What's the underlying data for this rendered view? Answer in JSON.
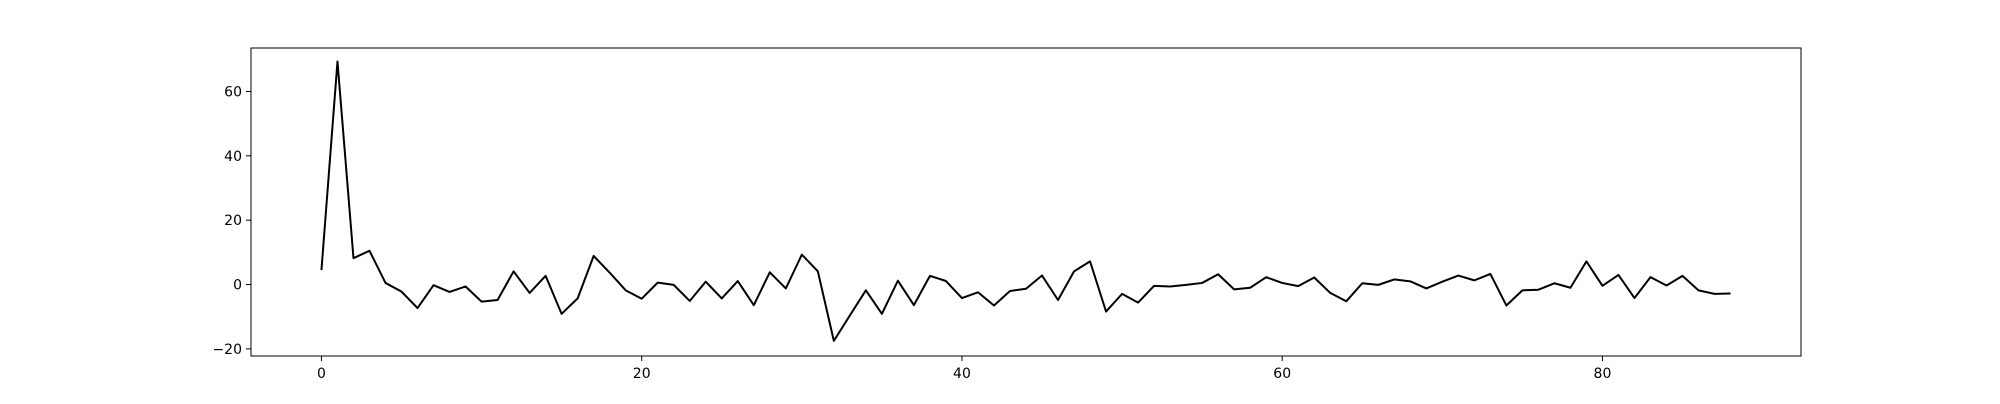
{
  "chart_data": {
    "type": "line",
    "title": "",
    "xlabel": "",
    "ylabel": "",
    "xlim": [
      -4.4,
      92.4
    ],
    "ylim": [
      -22.2,
      73.5
    ],
    "grid": false,
    "legend": "none",
    "x_ticks": [
      0,
      20,
      40,
      60,
      80
    ],
    "x_tick_labels": [
      "0",
      "20",
      "40",
      "60",
      "80"
    ],
    "y_ticks": [
      -20,
      0,
      20,
      40,
      60
    ],
    "y_tick_labels": [
      "−20",
      "0",
      "20",
      "40",
      "60"
    ],
    "line_color": "#000000",
    "series": [
      {
        "name": "",
        "x": [
          0,
          1,
          2,
          3,
          4,
          5,
          6,
          7,
          8,
          9,
          10,
          11,
          12,
          13,
          14,
          15,
          16,
          17,
          18,
          19,
          20,
          21,
          22,
          23,
          24,
          25,
          26,
          27,
          28,
          29,
          30,
          31,
          32,
          33,
          34,
          35,
          36,
          37,
          38,
          39,
          40,
          41,
          42,
          43,
          44,
          45,
          46,
          47,
          48,
          49,
          50,
          51,
          52,
          53,
          54,
          55,
          56,
          57,
          58,
          59,
          60,
          61,
          62,
          63,
          64,
          65,
          66,
          67,
          68,
          69,
          70,
          71,
          72,
          73,
          74,
          75,
          76,
          77,
          78,
          79,
          80,
          81,
          82,
          83,
          84,
          85,
          86,
          87,
          88
        ],
        "values": [
          4.5,
          69.3,
          8.2,
          10.5,
          0.5,
          -2.2,
          -7.3,
          -0.2,
          -2.3,
          -0.6,
          -5.3,
          -4.8,
          4.1,
          -2.6,
          2.7,
          -9.1,
          -4.3,
          8.9,
          3.7,
          -1.8,
          -4.4,
          0.6,
          -0.1,
          -5.1,
          0.9,
          -4.3,
          1.1,
          -6.4,
          3.8,
          -1.2,
          9.3,
          4.1,
          -17.5,
          -9.6,
          -1.8,
          -9.1,
          1.2,
          -6.4,
          2.7,
          1.1,
          -4.2,
          -2.4,
          -6.5,
          -2.0,
          -1.3,
          2.8,
          -4.8,
          4.1,
          7.2,
          -8.4,
          -2.9,
          -5.6,
          -0.4,
          -0.6,
          -0.1,
          0.5,
          3.2,
          -1.5,
          -1.0,
          2.3,
          0.5,
          -0.5,
          2.2,
          -2.6,
          -5.2,
          0.4,
          -0.1,
          1.6,
          1.0,
          -1.2,
          0.9,
          2.8,
          1.3,
          3.3,
          -6.5,
          -1.8,
          -1.6,
          0.4,
          -1.0,
          7.2,
          -0.4,
          3.0,
          -4.2,
          2.3,
          -0.3,
          2.7,
          -1.8,
          -2.9,
          -2.8
        ]
      }
    ]
  }
}
